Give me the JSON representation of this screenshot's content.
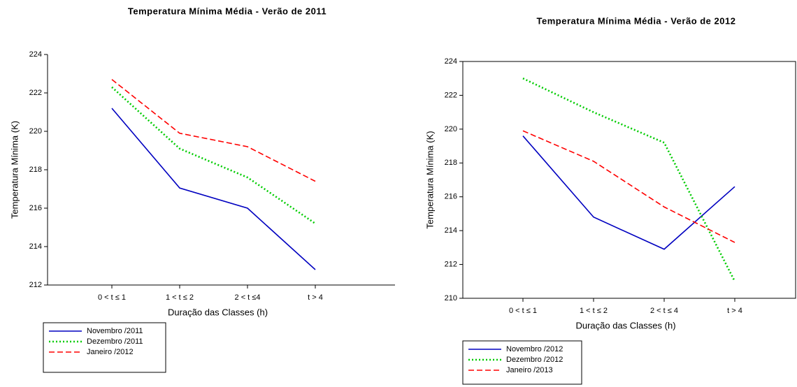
{
  "chart_data": [
    {
      "type": "line",
      "title": "Temperatura Mínima Média - Verão de 2011",
      "x_label": "Duração das Classes (h)",
      "y_label": "Temperatura Mínima (K)",
      "categories": [
        "0 < t ≤ 1",
        "1 < t ≤ 2",
        "2 < t ≤4",
        "t > 4"
      ],
      "ylim": [
        212,
        224
      ],
      "yticks": [
        212,
        214,
        216,
        218,
        220,
        222,
        224
      ],
      "series": [
        {
          "name": "Novembro /2011",
          "color": "#0000c0",
          "dash": "solid",
          "values": [
            221.2,
            217.05,
            216.0,
            212.8
          ]
        },
        {
          "name": "Dezembro /2011",
          "color": "#00cc00",
          "dash": "dotted",
          "values": [
            222.3,
            219.1,
            217.6,
            215.2
          ]
        },
        {
          "name": "Janeiro /2012",
          "color": "#ff0000",
          "dash": "dashed",
          "values": [
            222.7,
            219.9,
            219.2,
            217.4
          ]
        }
      ]
    },
    {
      "type": "line",
      "title": "Temperatura Mínima Média - Verão de 2012",
      "x_label": "Duração das Classes (h)",
      "y_label": "Temperatura Mínima (K)",
      "categories": [
        "0 < t ≤ 1",
        "1 < t ≤ 2",
        "2 < t ≤ 4",
        "t > 4"
      ],
      "ylim": [
        210,
        224
      ],
      "yticks": [
        210,
        212,
        214,
        216,
        218,
        220,
        222,
        224
      ],
      "series": [
        {
          "name": "Novembro /2012",
          "color": "#0000c0",
          "dash": "solid",
          "values": [
            219.6,
            214.8,
            212.9,
            216.6
          ]
        },
        {
          "name": "Dezembro /2012",
          "color": "#00cc00",
          "dash": "dotted",
          "values": [
            223.0,
            221.0,
            219.2,
            211.0
          ]
        },
        {
          "name": "Janeiro /2013",
          "color": "#ff0000",
          "dash": "dashed",
          "values": [
            219.9,
            218.1,
            215.4,
            213.3
          ]
        }
      ]
    }
  ]
}
